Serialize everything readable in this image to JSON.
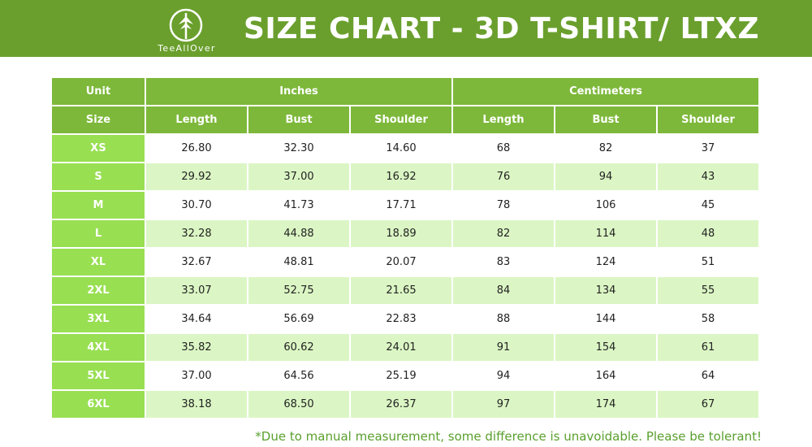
{
  "header": {
    "title": "SIZE CHART - 3D T-SHIRT/ LTXZ",
    "brand": "TeeAllOver",
    "logo_icon": "tree-circle-logo-icon",
    "background_color": "#6a9f2d"
  },
  "table": {
    "unit_label": "Unit",
    "size_label": "Size",
    "groups": [
      "Inches",
      "Centimeters"
    ],
    "columns": [
      "Length",
      "Bust",
      "Shoulder",
      "Length",
      "Bust",
      "Shoulder"
    ],
    "rows": [
      {
        "size": "XS",
        "values": [
          "26.80",
          "32.30",
          "14.60",
          "68",
          "82",
          "37"
        ]
      },
      {
        "size": "S",
        "values": [
          "29.92",
          "37.00",
          "16.92",
          "76",
          "94",
          "43"
        ]
      },
      {
        "size": "M",
        "values": [
          "30.70",
          "41.73",
          "17.71",
          "78",
          "106",
          "45"
        ]
      },
      {
        "size": "L",
        "values": [
          "32.28",
          "44.88",
          "18.89",
          "82",
          "114",
          "48"
        ]
      },
      {
        "size": "XL",
        "values": [
          "32.67",
          "48.81",
          "20.07",
          "83",
          "124",
          "51"
        ]
      },
      {
        "size": "2XL",
        "values": [
          "33.07",
          "52.75",
          "21.65",
          "84",
          "134",
          "55"
        ]
      },
      {
        "size": "3XL",
        "values": [
          "34.64",
          "56.69",
          "22.83",
          "88",
          "144",
          "58"
        ]
      },
      {
        "size": "4XL",
        "values": [
          "35.82",
          "60.62",
          "24.01",
          "91",
          "154",
          "61"
        ]
      },
      {
        "size": "5XL",
        "values": [
          "37.00",
          "64.56",
          "25.19",
          "94",
          "164",
          "64"
        ]
      },
      {
        "size": "6XL",
        "values": [
          "38.18",
          "68.50",
          "26.37",
          "97",
          "174",
          "67"
        ]
      }
    ],
    "colors": {
      "header_bg": "#7db83a",
      "size_bg": "#98df52",
      "row_alt_bg": "#dbf6c4"
    }
  },
  "footer": {
    "note": "*Due to manual measurement, some difference is unavoidable. Please be tolerant!",
    "note_color": "#5aa02e"
  }
}
